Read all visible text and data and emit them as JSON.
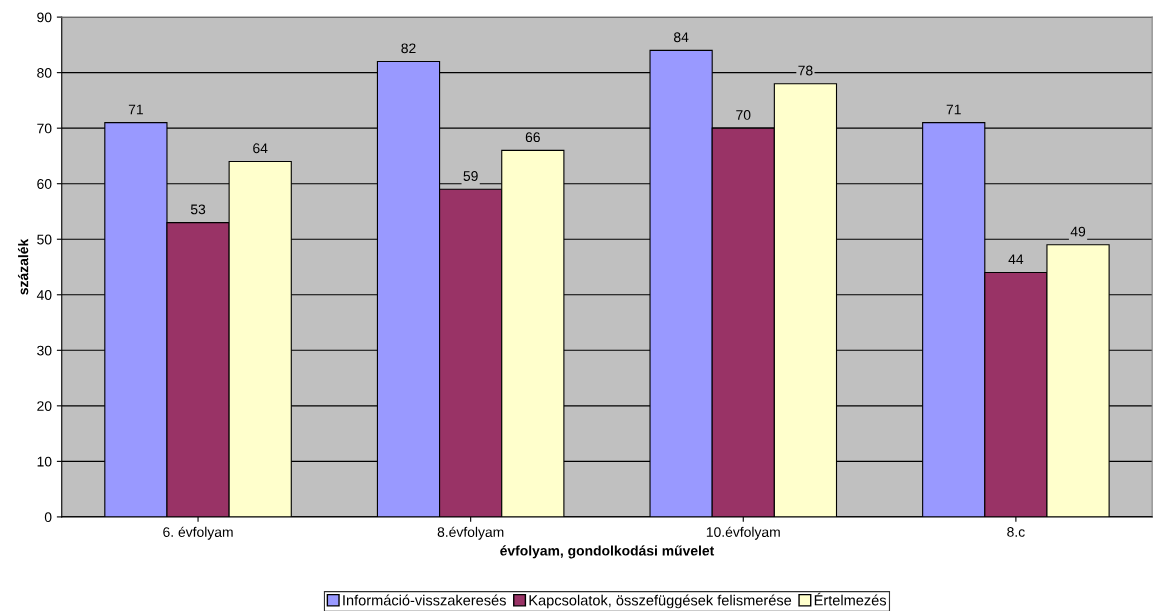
{
  "chart_data": {
    "type": "bar",
    "xlabel": "évfolyam, gondolkodási művelet",
    "ylabel": "százalék",
    "categories": [
      "6. évfolyam",
      "8.évfolyam",
      "10.évfolyam",
      "8.c"
    ],
    "series": [
      {
        "name": "Információ-visszakeresés",
        "color": "#9999ff",
        "values": [
          71,
          82,
          84,
          71
        ]
      },
      {
        "name": "Kapcsolatok, összefüggések felismerése",
        "color": "#993366",
        "values": [
          53,
          59,
          70,
          44
        ]
      },
      {
        "name": "Értelmezés",
        "color": "#ffffcc",
        "values": [
          64,
          66,
          78,
          49
        ]
      }
    ],
    "ylim": [
      0,
      90
    ],
    "yticks": [
      0,
      10,
      20,
      30,
      40,
      50,
      60,
      70,
      80,
      90
    ],
    "grid": "y",
    "legend": "bottom",
    "data_labels": true
  }
}
